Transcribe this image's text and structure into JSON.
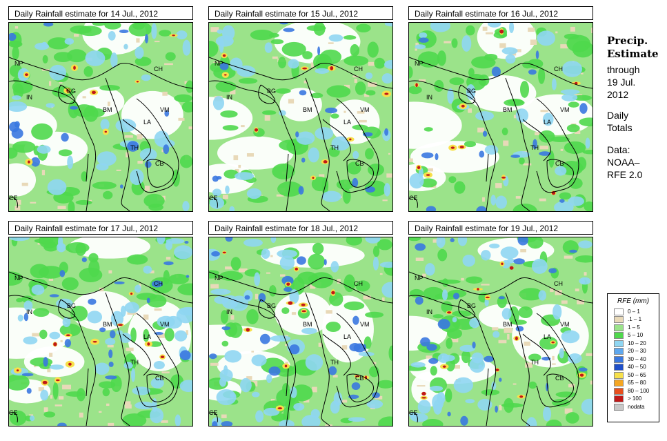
{
  "panels": [
    {
      "title": "Daily Rainfall estimate for  14 Jul., 2012"
    },
    {
      "title": "Daily Rainfall estimate for  15 Jul., 2012"
    },
    {
      "title": "Daily Rainfall estimate for  16 Jul., 2012"
    },
    {
      "title": "Daily Rainfall estimate for  17 Jul., 2012"
    },
    {
      "title": "Daily Rainfall estimate for  18 Jul., 2012"
    },
    {
      "title": "Daily Rainfall estimate for  19 Jul., 2012"
    }
  ],
  "country_labels": {
    "np": "NP",
    "ch": "CH",
    "in": "IN",
    "bg": "BG",
    "bm": "BM",
    "vm": "VM",
    "la": "LA",
    "th": "TH",
    "cb": "CB",
    "ce": "CE"
  },
  "side": {
    "title_line1": "Precip.",
    "title_line2": "Estimate",
    "through": "through",
    "date_line1": "19 Jul.",
    "date_line2": "2012",
    "totals_line1": "Daily",
    "totals_line2": "Totals",
    "data_line1": "Data:",
    "data_line2": "NOAA–",
    "data_line3": "RFE 2.0"
  },
  "legend": {
    "title": "RFE (mm)",
    "items": [
      {
        "label": "0 – 1",
        "color": "#ffffff"
      },
      {
        "label": ".1 – 1",
        "color": "#e8d9b8"
      },
      {
        "label": "1 – 5",
        "color": "#9be38a"
      },
      {
        "label": "5 – 10",
        "color": "#4fd84c"
      },
      {
        "label": "10 – 20",
        "color": "#8fd6f2"
      },
      {
        "label": "20 – 30",
        "color": "#5fa8ee"
      },
      {
        "label": "30 – 40",
        "color": "#3a78e0"
      },
      {
        "label": "40 – 50",
        "color": "#1f4fc9"
      },
      {
        "label": "50 – 65",
        "color": "#f7e04a"
      },
      {
        "label": "65 – 80",
        "color": "#f5a623"
      },
      {
        "label": "80 – 100",
        "color": "#e8501e"
      },
      {
        "label": "> 100",
        "color": "#c01818"
      },
      {
        "label": "nodata",
        "color": "#c8c8c8"
      }
    ]
  }
}
